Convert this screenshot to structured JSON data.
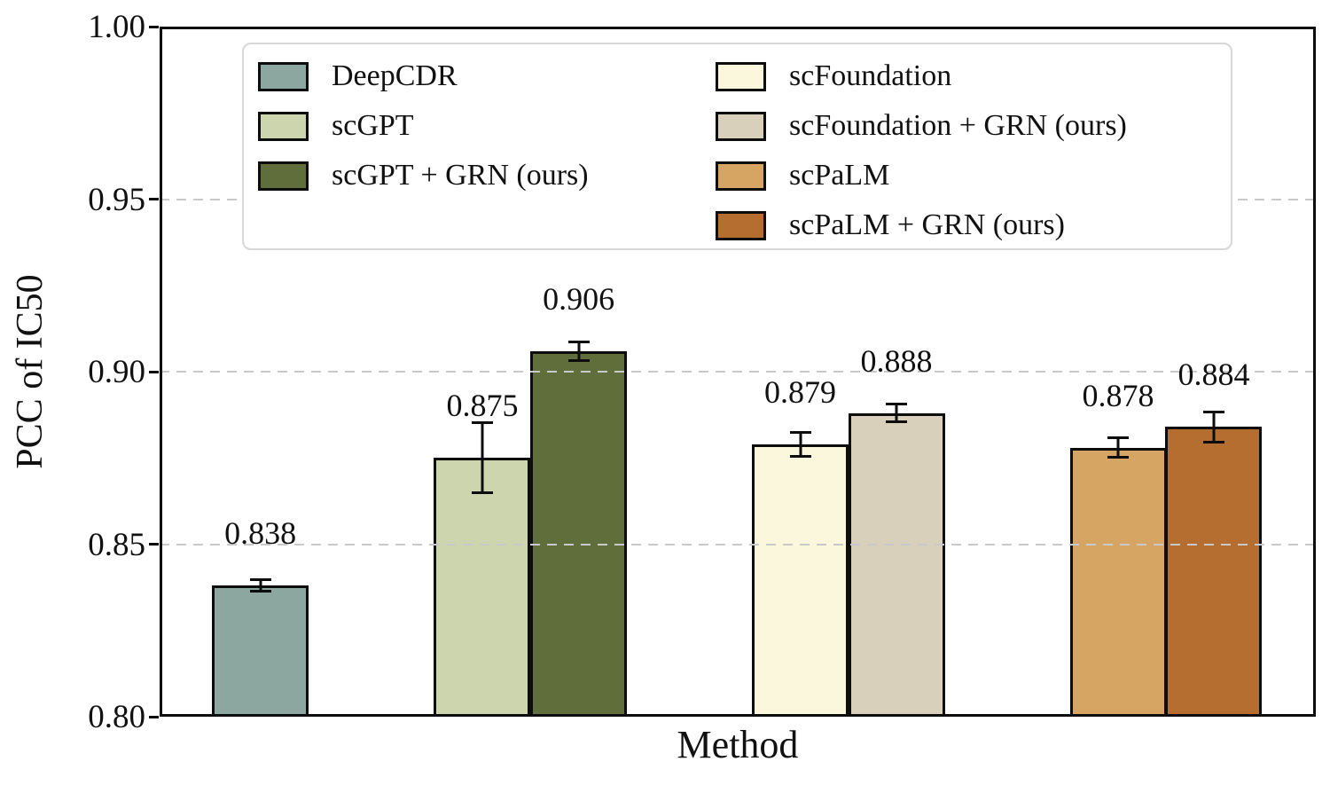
{
  "chart_data": {
    "type": "bar",
    "title": "",
    "xlabel": "Method",
    "ylabel": "PCC of IC50",
    "ylim": [
      0.8,
      1.0
    ],
    "yticks": [
      1.0,
      0.95,
      0.9,
      0.85,
      0.8
    ],
    "ytick_labels": [
      "1.00",
      "0.95",
      "0.90",
      "0.85",
      "0.80"
    ],
    "grid": {
      "axis": "y",
      "style": "dashed",
      "color": "#c9c9c9",
      "lines_at": [
        0.95,
        0.9,
        0.85
      ]
    },
    "legend_position": "upper center, two columns, inside plot",
    "bar_width_frac": 0.0836,
    "label_offset_value": 0.0105,
    "series": [
      {
        "name": "DeepCDR",
        "value": 0.838,
        "label": "0.838",
        "error": 0.0016,
        "color": "#8ca7a0",
        "center_frac": 0.0871
      },
      {
        "name": "scGPT",
        "value": 0.875,
        "label": "0.875",
        "error": 0.01,
        "color": "#cdd5ae",
        "center_frac": 0.2791
      },
      {
        "name": "scGPT + GRN (ours)",
        "value": 0.906,
        "label": "0.906",
        "error": 0.0026,
        "color": "#606e3c",
        "center_frac": 0.3624
      },
      {
        "name": "scFoundation",
        "value": 0.879,
        "label": "0.879",
        "error": 0.0033,
        "color": "#faf7dc",
        "center_frac": 0.5541
      },
      {
        "name": "scFoundation + GRN (ours)",
        "value": 0.888,
        "label": "0.888",
        "error": 0.0024,
        "color": "#d8d0ba",
        "center_frac": 0.6373
      },
      {
        "name": "scPaLM",
        "value": 0.878,
        "label": "0.878",
        "error": 0.0026,
        "color": "#d6a463",
        "center_frac": 0.829
      },
      {
        "name": "scPaLM + GRN (ours)",
        "value": 0.884,
        "label": "0.884",
        "error": 0.0042,
        "color": "#b56e30",
        "center_frac": 0.9118
      }
    ],
    "legend_columns": [
      [
        "DeepCDR",
        "scGPT",
        "scGPT + GRN (ours)"
      ],
      [
        "scFoundation",
        "scFoundation + GRN (ours)",
        "scPaLM",
        "scPaLM + GRN (ours)"
      ]
    ]
  }
}
